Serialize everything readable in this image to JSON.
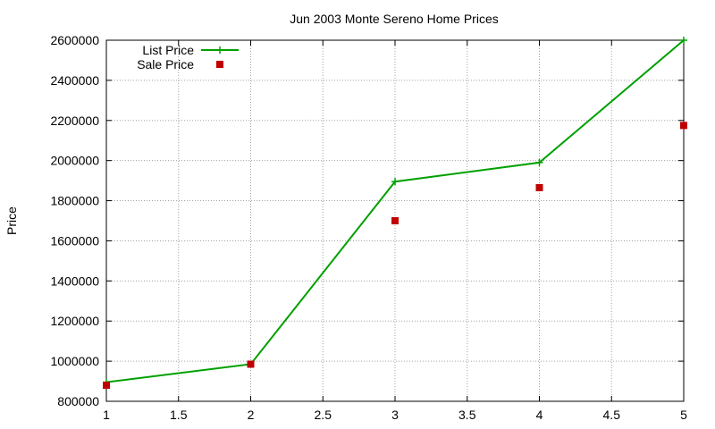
{
  "chart_data": {
    "type": "line",
    "title": "Jun 2003 Monte Sereno Home Prices",
    "xlabel": "",
    "ylabel": "Price",
    "xlim": [
      1,
      5
    ],
    "ylim": [
      800000,
      2600000
    ],
    "x_ticks": [
      "1",
      "1.5",
      "2",
      "2.5",
      "3",
      "3.5",
      "4",
      "4.5",
      "5"
    ],
    "y_ticks": [
      "800000",
      "1000000",
      "1200000",
      "1400000",
      "1600000",
      "1800000",
      "2000000",
      "2200000",
      "2400000",
      "2600000"
    ],
    "grid": true,
    "legend_position": "top-left",
    "series": [
      {
        "name": "List Price",
        "style": "line-points",
        "marker": "plus",
        "color": "#00a000",
        "x": [
          1,
          2,
          3,
          4,
          5
        ],
        "values": [
          895000,
          985000,
          1895000,
          1990000,
          2600000
        ]
      },
      {
        "name": "Sale Price",
        "style": "points",
        "marker": "square",
        "color": "#c00000",
        "x": [
          1,
          2,
          3,
          4,
          5
        ],
        "values": [
          880000,
          985000,
          1700000,
          1865000,
          2175000
        ]
      }
    ]
  }
}
